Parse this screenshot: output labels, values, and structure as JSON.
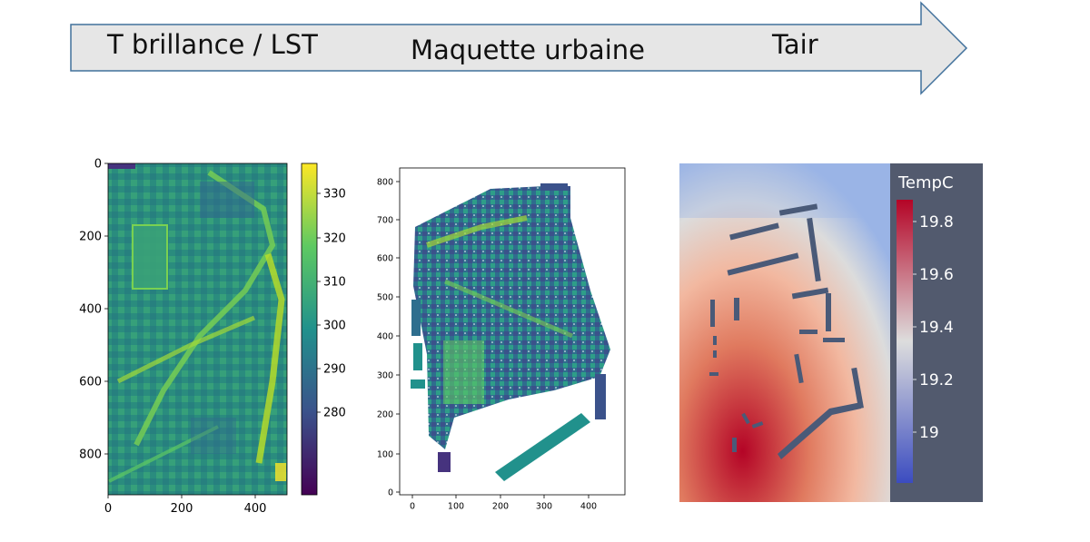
{
  "arrow": {
    "stages": [
      "T brillance / LST",
      "Maquette urbaine",
      "Tair"
    ]
  },
  "panel_lst": {
    "y_ticks": [
      "0",
      "200",
      "400",
      "600",
      "800"
    ],
    "x_ticks": [
      "0",
      "200",
      "400"
    ],
    "colorbar_ticks": [
      "330",
      "320",
      "310",
      "300",
      "290",
      "280"
    ]
  },
  "panel_model": {
    "y_ticks": [
      "800",
      "700",
      "600",
      "500",
      "400",
      "300",
      "200",
      "100",
      "0"
    ],
    "x_ticks": [
      "0",
      "100",
      "200",
      "300",
      "400"
    ]
  },
  "panel_tair": {
    "legend_title": "TempC",
    "legend_ticks": [
      "19.8",
      "19.6",
      "19.4",
      "19.2",
      "19"
    ]
  },
  "colors": {
    "arrow_fill": "#e6e6e6",
    "arrow_stroke": "#41719c",
    "viridis_dark": "#440154",
    "viridis_mid": "#21918c",
    "viridis_light": "#fde725",
    "temp_hot": "#b40426",
    "temp_cold": "#3b4cc0",
    "legend_bg": "#525a6e"
  }
}
